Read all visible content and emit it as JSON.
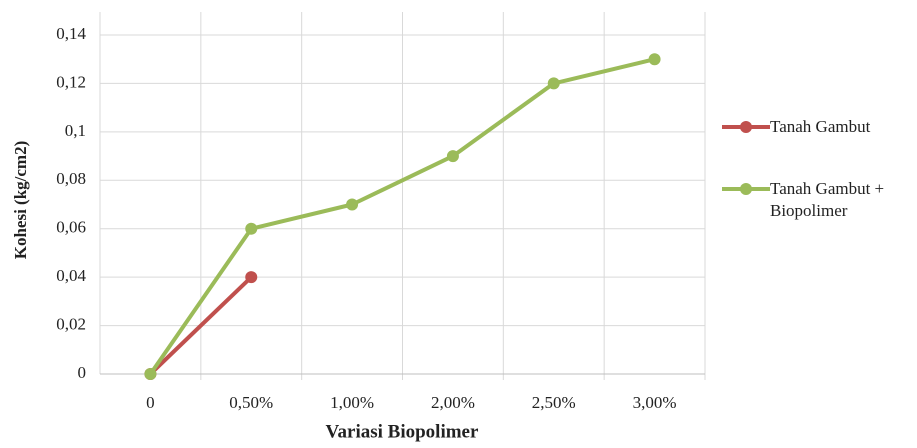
{
  "chart_data": {
    "type": "line",
    "xlabel": "Variasi Biopolimer",
    "ylabel": "Kohesi (kg/cm2)",
    "categories": [
      "0",
      "0,50%",
      "1,00%",
      "2,00%",
      "2,50%",
      "3,00%"
    ],
    "series": [
      {
        "name": "Tanah Gambut",
        "color": "#c0504d",
        "values": [
          0,
          0.04,
          null,
          null,
          null,
          null
        ]
      },
      {
        "name": "Tanah Gambut + Biopolimer",
        "color": "#9bbb59",
        "values": [
          0,
          0.06,
          0.07,
          0.09,
          0.12,
          0.13
        ]
      }
    ],
    "ylim": [
      0,
      0.14
    ],
    "yticks": [
      0,
      {
        "value": 0.02,
        "label": "0,02"
      },
      {
        "value": 0.04,
        "label": "0,04"
      },
      {
        "value": 0.06,
        "label": "0,06"
      },
      {
        "value": 0.08,
        "label": "0,08"
      },
      {
        "value": 0.1,
        "label": "0,1"
      },
      {
        "value": 0.12,
        "label": "0,12"
      },
      {
        "value": 0.14,
        "label": "0,14"
      }
    ],
    "grid": true
  }
}
